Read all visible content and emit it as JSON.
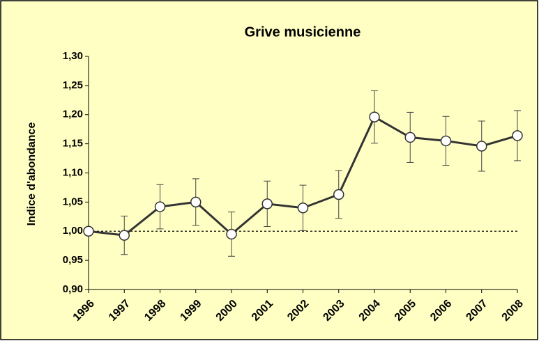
{
  "chart_data": {
    "type": "line",
    "title": "Grive musicienne",
    "y_label": "Indice d'abondance",
    "categories": [
      "1996",
      "1997",
      "1998",
      "1999",
      "2000",
      "2001",
      "2002",
      "2003",
      "2004",
      "2005",
      "2006",
      "2007",
      "2008"
    ],
    "values": [
      1.0,
      0.993,
      1.042,
      1.05,
      0.995,
      1.047,
      1.04,
      1.063,
      1.196,
      1.161,
      1.155,
      1.146,
      1.164
    ],
    "errors": [
      null,
      0.033,
      0.038,
      0.04,
      0.038,
      0.039,
      0.039,
      0.041,
      0.045,
      0.043,
      0.042,
      0.043,
      0.043
    ],
    "color": "#333333",
    "reference_line": 1,
    "ylim": [
      0.9,
      1.3
    ],
    "yticks": [
      {
        "value": 0.9,
        "label": "0,90"
      },
      {
        "value": 0.95,
        "label": "0,95"
      },
      {
        "value": 1.0,
        "label": "1,00"
      },
      {
        "value": 1.05,
        "label": "1,05"
      },
      {
        "value": 1.1,
        "label": "1,10"
      },
      {
        "value": 1.15,
        "label": "1,15"
      },
      {
        "value": 1.2,
        "label": "1,20"
      },
      {
        "value": 1.25,
        "label": "1,25"
      },
      {
        "value": 1.3,
        "label": "1,30"
      }
    ],
    "grid": false
  }
}
